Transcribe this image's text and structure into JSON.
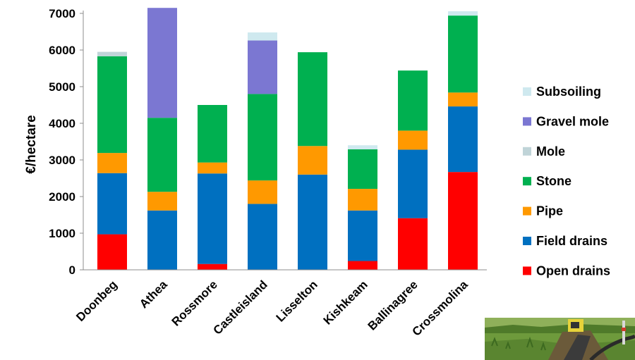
{
  "chart_data": {
    "type": "bar",
    "stacked": true,
    "title": "",
    "xlabel": "",
    "ylabel": "€/hectare",
    "ylim": [
      0,
      7000
    ],
    "yticks": [
      0,
      1000,
      2000,
      3000,
      4000,
      5000,
      6000,
      7000
    ],
    "grid": false,
    "legend_position": "right",
    "categories": [
      "Doonbeg",
      "Athea",
      "Rossmore",
      "Castleisland",
      "Lisselton",
      "Kishkeam",
      "Ballinagree",
      "Crossmolina"
    ],
    "series": [
      {
        "name": "Open drains",
        "color": "#ff0000",
        "values": [
          970,
          0,
          160,
          0,
          0,
          240,
          1410,
          2670
        ]
      },
      {
        "name": "Field drains",
        "color": "#0070c0",
        "values": [
          1670,
          1620,
          2470,
          1800,
          2600,
          1380,
          1870,
          1790
        ]
      },
      {
        "name": "Pipe",
        "color": "#ff9900",
        "values": [
          550,
          510,
          300,
          640,
          780,
          590,
          520,
          380
        ]
      },
      {
        "name": "Stone",
        "color": "#00b050",
        "values": [
          2640,
          2020,
          1570,
          2360,
          2560,
          1080,
          1640,
          2100
        ]
      },
      {
        "name": "Mole",
        "color": "#c0d4d8",
        "values": [
          120,
          0,
          0,
          0,
          0,
          0,
          0,
          0
        ]
      },
      {
        "name": "Gravel mole",
        "color": "#7b77d2",
        "values": [
          0,
          3000,
          0,
          1460,
          0,
          0,
          0,
          0
        ]
      },
      {
        "name": "Subsoiling",
        "color": "#cfe9ef",
        "values": [
          0,
          0,
          0,
          220,
          0,
          110,
          0,
          120
        ]
      }
    ]
  },
  "photo": {
    "sky": "#6e9a3c",
    "grass": "#5f8a30",
    "machine": "#e6d23a",
    "hose": "#2a2a2a"
  }
}
